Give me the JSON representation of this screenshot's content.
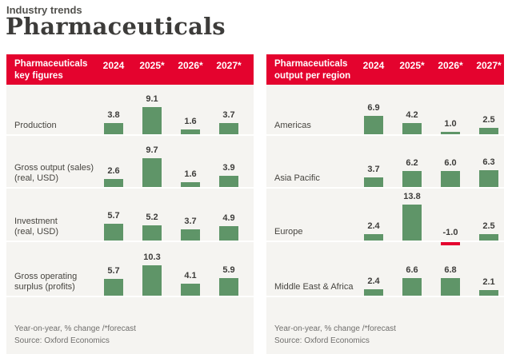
{
  "header": {
    "kicker": "Industry trends",
    "title": "Pharmaceuticals"
  },
  "panels": [
    {
      "title_lines": [
        "Pharmaceuticals",
        "key figures"
      ],
      "years": [
        "2024",
        "2025*",
        "2026*",
        "2027*"
      ],
      "rows": [
        {
          "label_lines": [
            "Production"
          ],
          "values": [
            3.8,
            9.1,
            1.6,
            3.7
          ]
        },
        {
          "label_lines": [
            "Gross output (sales)",
            "(real, USD)"
          ],
          "values": [
            2.6,
            9.7,
            1.6,
            3.9
          ]
        },
        {
          "label_lines": [
            "Investment",
            "(real, USD)"
          ],
          "values": [
            5.7,
            5.2,
            3.7,
            4.9
          ]
        },
        {
          "label_lines": [
            "Gross operating",
            "surplus (profits)"
          ],
          "values": [
            5.7,
            10.3,
            4.1,
            5.9
          ]
        }
      ],
      "footnote": "Year-on-year, % change /*forecast",
      "source": "Source: Oxford Economics"
    },
    {
      "title_lines": [
        "Pharmaceuticals",
        "output per region"
      ],
      "years": [
        "2024",
        "2025*",
        "2026*",
        "2027*"
      ],
      "rows": [
        {
          "label_lines": [
            "Americas"
          ],
          "values": [
            6.9,
            4.2,
            1.0,
            2.5
          ]
        },
        {
          "label_lines": [
            "Asia Pacific"
          ],
          "values": [
            3.7,
            6.2,
            6.0,
            6.3
          ]
        },
        {
          "label_lines": [
            "Europe"
          ],
          "values": [
            2.4,
            13.8,
            -1.0,
            2.5
          ]
        },
        {
          "label_lines": [
            "Middle East & Africa"
          ],
          "values": [
            2.4,
            6.6,
            6.8,
            2.1
          ]
        }
      ],
      "footnote": "Year-on-year, % change /*forecast",
      "source": "Source: Oxford Economics"
    }
  ],
  "colors": {
    "accent_red": "#e4032e",
    "bar_green": "#5f9568",
    "negative_bar_red": "#e4032e",
    "panel_background": "#f5f4f1"
  },
  "chart_data": [
    {
      "type": "bar",
      "title": "Pharmaceuticals key figures",
      "categories": [
        "2024",
        "2025*",
        "2026*",
        "2027*"
      ],
      "series": [
        {
          "name": "Production",
          "values": [
            3.8,
            9.1,
            1.6,
            3.7
          ]
        },
        {
          "name": "Gross output (sales) (real, USD)",
          "values": [
            2.6,
            9.7,
            1.6,
            3.9
          ]
        },
        {
          "name": "Investment (real, USD)",
          "values": [
            5.7,
            5.2,
            3.7,
            4.9
          ]
        },
        {
          "name": "Gross operating surplus (profits)",
          "values": [
            5.7,
            10.3,
            4.1,
            5.9
          ]
        }
      ],
      "ylabel": "Year-on-year, % change",
      "note": "/*forecast",
      "source": "Oxford Economics",
      "legend_position": "none",
      "grid": false
    },
    {
      "type": "bar",
      "title": "Pharmaceuticals output per region",
      "categories": [
        "2024",
        "2025*",
        "2026*",
        "2027*"
      ],
      "series": [
        {
          "name": "Americas",
          "values": [
            6.9,
            4.2,
            1.0,
            2.5
          ]
        },
        {
          "name": "Asia Pacific",
          "values": [
            3.7,
            6.2,
            6.0,
            6.3
          ]
        },
        {
          "name": "Europe",
          "values": [
            2.4,
            13.8,
            -1.0,
            2.5
          ]
        },
        {
          "name": "Middle East & Africa",
          "values": [
            2.4,
            6.6,
            6.8,
            2.1
          ]
        }
      ],
      "ylabel": "Year-on-year, % change",
      "note": "/*forecast",
      "source": "Oxford Economics",
      "legend_position": "none",
      "grid": false
    }
  ]
}
